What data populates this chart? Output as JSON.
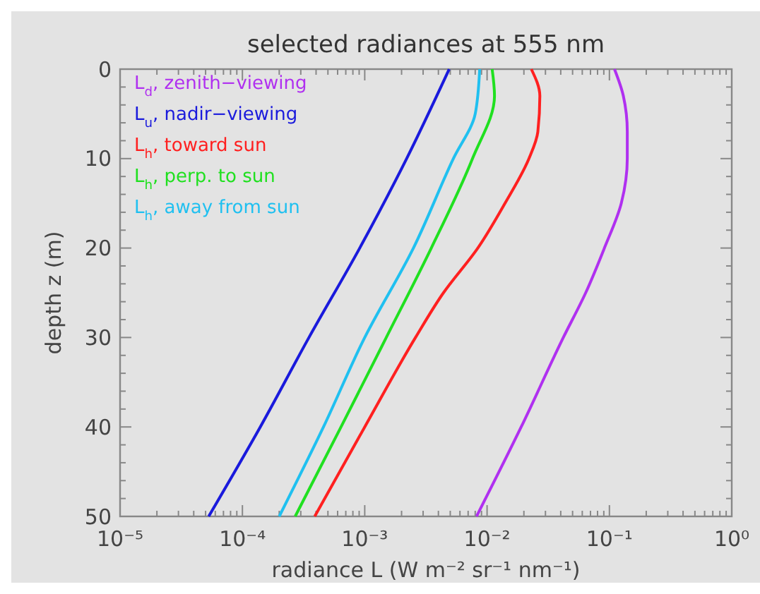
{
  "chart_data": {
    "type": "line",
    "title": "selected radiances at 555 nm",
    "xlabel": "radiance L (W m⁻² sr⁻¹ nm⁻¹)",
    "ylabel": "depth z (m)",
    "log": "x",
    "grid": false,
    "legend": "top left",
    "xlim": [
      1e-05,
      1
    ],
    "ylim": [
      50,
      0
    ],
    "xticks": [
      {
        "value": 1e-05,
        "label": "10⁻⁵"
      },
      {
        "value": 0.0001,
        "label": "10⁻⁴"
      },
      {
        "value": 0.001,
        "label": "10⁻³"
      },
      {
        "value": 0.01,
        "label": "10⁻²"
      },
      {
        "value": 0.1,
        "label": "10⁻¹"
      },
      {
        "value": 1,
        "label": "10⁰"
      }
    ],
    "yticks": [
      0,
      10,
      20,
      30,
      40,
      50
    ],
    "series": [
      {
        "name": "L$_{d}$, zenith−viewing",
        "color": "#b030f0",
        "x": [
          0.11,
          0.13,
          0.14,
          0.14,
          0.125,
          0.091,
          0.064,
          0.042,
          0.019,
          0.0082
        ],
        "values": [
          0,
          3,
          7,
          10,
          15,
          20,
          25,
          30,
          40,
          50
        ]
      },
      {
        "name": "L$_{u}$, nadir−viewing",
        "color": "#1a1adc",
        "x": [
          0.0049,
          0.0022,
          0.00091,
          0.00035,
          0.00014,
          5.3e-05
        ],
        "values": [
          0,
          10,
          20,
          30,
          40,
          50
        ]
      },
      {
        "name": "L$_{h}$, toward sun",
        "color": "#ff2020",
        "x": [
          0.023,
          0.027,
          0.026,
          0.022,
          0.014,
          0.0084,
          0.0044,
          0.0026,
          0.001,
          0.00039
        ],
        "values": [
          0,
          3,
          7,
          10,
          15,
          20,
          25,
          30,
          40,
          50
        ]
      },
      {
        "name": "L$_{h}$, perp. to sun",
        "color": "#20e020",
        "x": [
          0.011,
          0.0115,
          0.0076,
          0.0035,
          0.0015,
          0.00064,
          0.00027
        ],
        "values": [
          0,
          3,
          10,
          20,
          30,
          40,
          50
        ]
      },
      {
        "name": "L$_{h}$, away from sun",
        "color": "#20c0f0",
        "x": [
          0.0087,
          0.008,
          0.0053,
          0.0025,
          0.001,
          0.00046,
          0.0002
        ],
        "values": [
          0,
          5,
          10,
          20,
          30,
          40,
          50
        ]
      }
    ]
  }
}
